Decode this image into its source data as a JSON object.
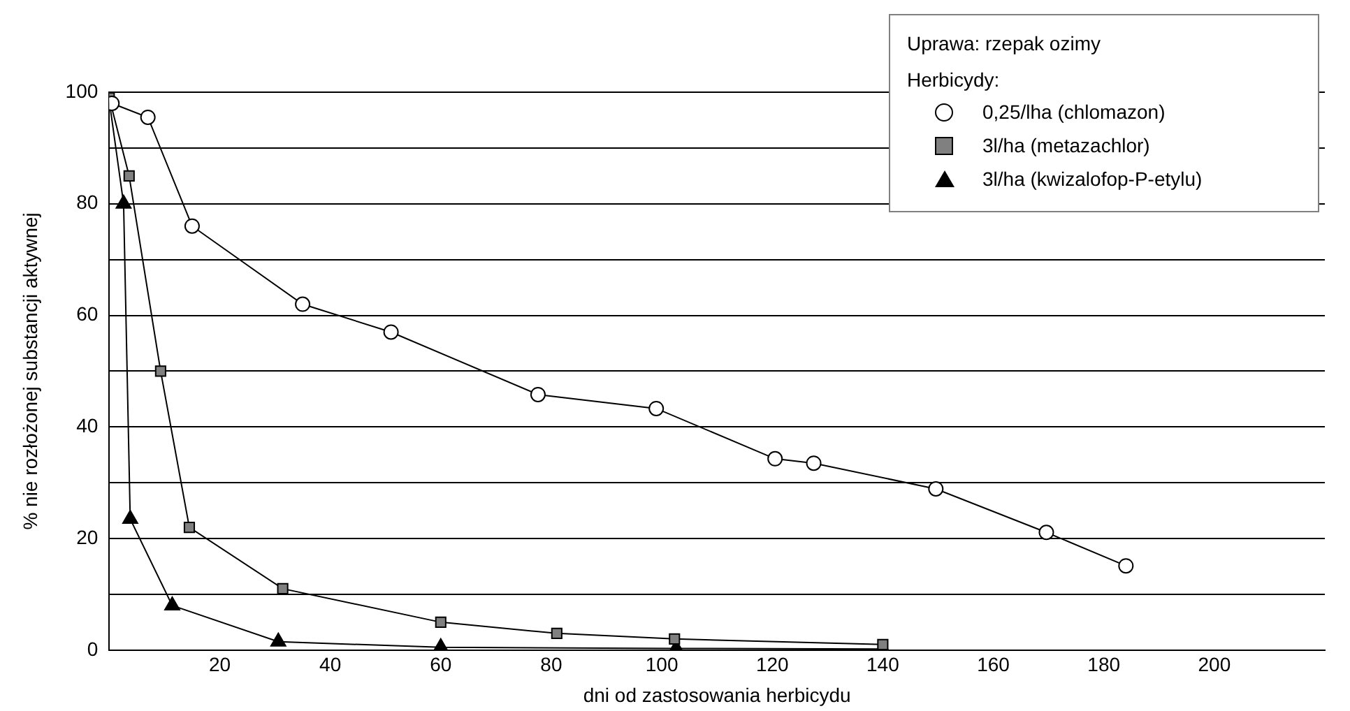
{
  "chart_data": {
    "type": "line",
    "xlabel": "dni od zastosowania herbicydu",
    "ylabel": "% nie rozłożonej substancji aktywnej",
    "legend_title": "Uprawa: rzepak ozimy",
    "annotations": [
      "Herbicydy:"
    ],
    "xlim": [
      0,
      220
    ],
    "xticks": [
      20,
      40,
      60,
      80,
      100,
      120,
      140,
      160,
      180,
      200
    ],
    "ylim": [
      0,
      100
    ],
    "yticks": [
      0,
      {
        "value": 10,
        "label": null
      },
      20,
      {
        "value": 30,
        "label": null
      },
      40,
      {
        "value": 50,
        "label": null
      },
      60,
      {
        "value": 70,
        "label": null
      },
      80,
      {
        "value": 90,
        "label": null
      },
      100
    ],
    "grid": "y",
    "legend": "top right",
    "series": [
      {
        "name": "0,25/lha (chlomazon)",
        "color": "#ffffff",
        "marker": "circle",
        "x": [
          0.5,
          7,
          15,
          35,
          51,
          77.6,
          99,
          120.5,
          127.5,
          149.6,
          169.6,
          184
        ],
        "values": [
          98,
          95.5,
          76,
          62,
          57,
          45.8,
          43.3,
          34.3,
          33.5,
          28.9,
          21.1,
          15.1
        ]
      },
      {
        "name": "3l/ha (metazachlor)",
        "color": "#808080",
        "marker": "square",
        "x": [
          0,
          3.6,
          9.3,
          14.5,
          31.4,
          60,
          81,
          102.3,
          140
        ],
        "values": [
          99,
          85,
          50,
          22,
          11,
          5,
          3,
          2,
          1
        ]
      },
      {
        "name": "3l/ha (kwizalofop-P-etylu)",
        "color": "#000000",
        "marker": "triangle",
        "x": [
          0,
          2.6,
          3.8,
          11.4,
          30.6,
          60,
          102.6,
          140
        ],
        "values": [
          98.5,
          80,
          23.5,
          8,
          1.5,
          0.5,
          0.3,
          0.2
        ]
      }
    ]
  }
}
